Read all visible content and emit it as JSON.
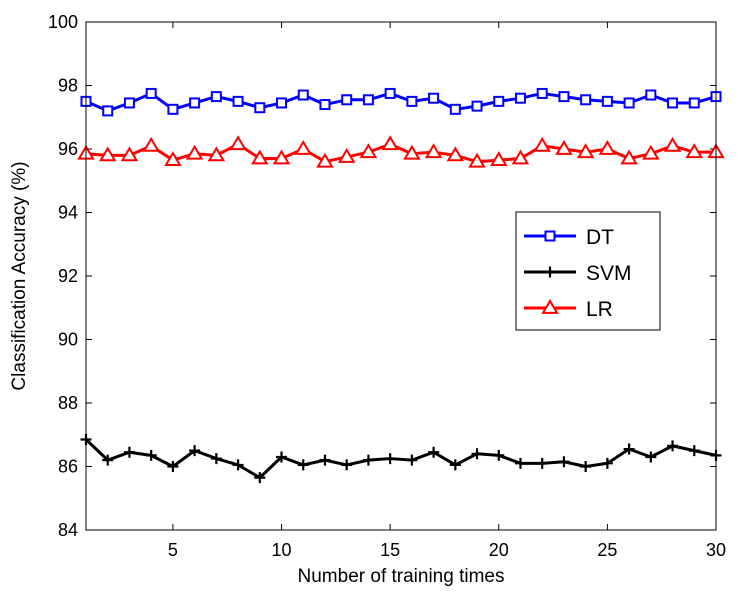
{
  "chart_data": {
    "type": "line",
    "title": "",
    "xlabel": "Number of training times",
    "ylabel": "Classification Accuracy (%)",
    "xlim": [
      1,
      30
    ],
    "ylim": [
      84,
      100
    ],
    "xticks": [
      5,
      10,
      15,
      20,
      25,
      30
    ],
    "yticks": [
      84,
      86,
      88,
      90,
      92,
      94,
      96,
      98,
      100
    ],
    "grid": false,
    "legend_position": "right",
    "x": [
      1,
      2,
      3,
      4,
      5,
      6,
      7,
      8,
      9,
      10,
      11,
      12,
      13,
      14,
      15,
      16,
      17,
      18,
      19,
      20,
      21,
      22,
      23,
      24,
      25,
      26,
      27,
      28,
      29,
      30
    ],
    "series": [
      {
        "name": "DT",
        "color": "#0000ff",
        "marker": "square",
        "values": [
          97.5,
          97.2,
          97.45,
          97.75,
          97.25,
          97.45,
          97.65,
          97.5,
          97.3,
          97.45,
          97.7,
          97.4,
          97.55,
          97.55,
          97.75,
          97.5,
          97.6,
          97.25,
          97.35,
          97.5,
          97.6,
          97.75,
          97.65,
          97.55,
          97.5,
          97.45,
          97.7,
          97.45,
          97.45,
          97.65
        ]
      },
      {
        "name": "SVM",
        "color": "#000000",
        "marker": "plus",
        "values": [
          86.85,
          86.2,
          86.45,
          86.35,
          86.0,
          86.5,
          86.25,
          86.05,
          85.65,
          86.3,
          86.05,
          86.2,
          86.05,
          86.2,
          86.25,
          86.2,
          86.45,
          86.05,
          86.4,
          86.35,
          86.1,
          86.1,
          86.15,
          86.0,
          86.1,
          86.55,
          86.3,
          86.65,
          86.5,
          86.35
        ]
      },
      {
        "name": "LR",
        "color": "#ff0000",
        "marker": "triangle",
        "values": [
          95.85,
          95.8,
          95.8,
          96.1,
          95.65,
          95.85,
          95.8,
          96.15,
          95.7,
          95.7,
          96.0,
          95.6,
          95.75,
          95.9,
          96.15,
          95.85,
          95.9,
          95.8,
          95.6,
          95.65,
          95.7,
          96.1,
          96.0,
          95.9,
          96.0,
          95.7,
          95.85,
          96.1,
          95.9,
          95.9
        ]
      }
    ]
  }
}
